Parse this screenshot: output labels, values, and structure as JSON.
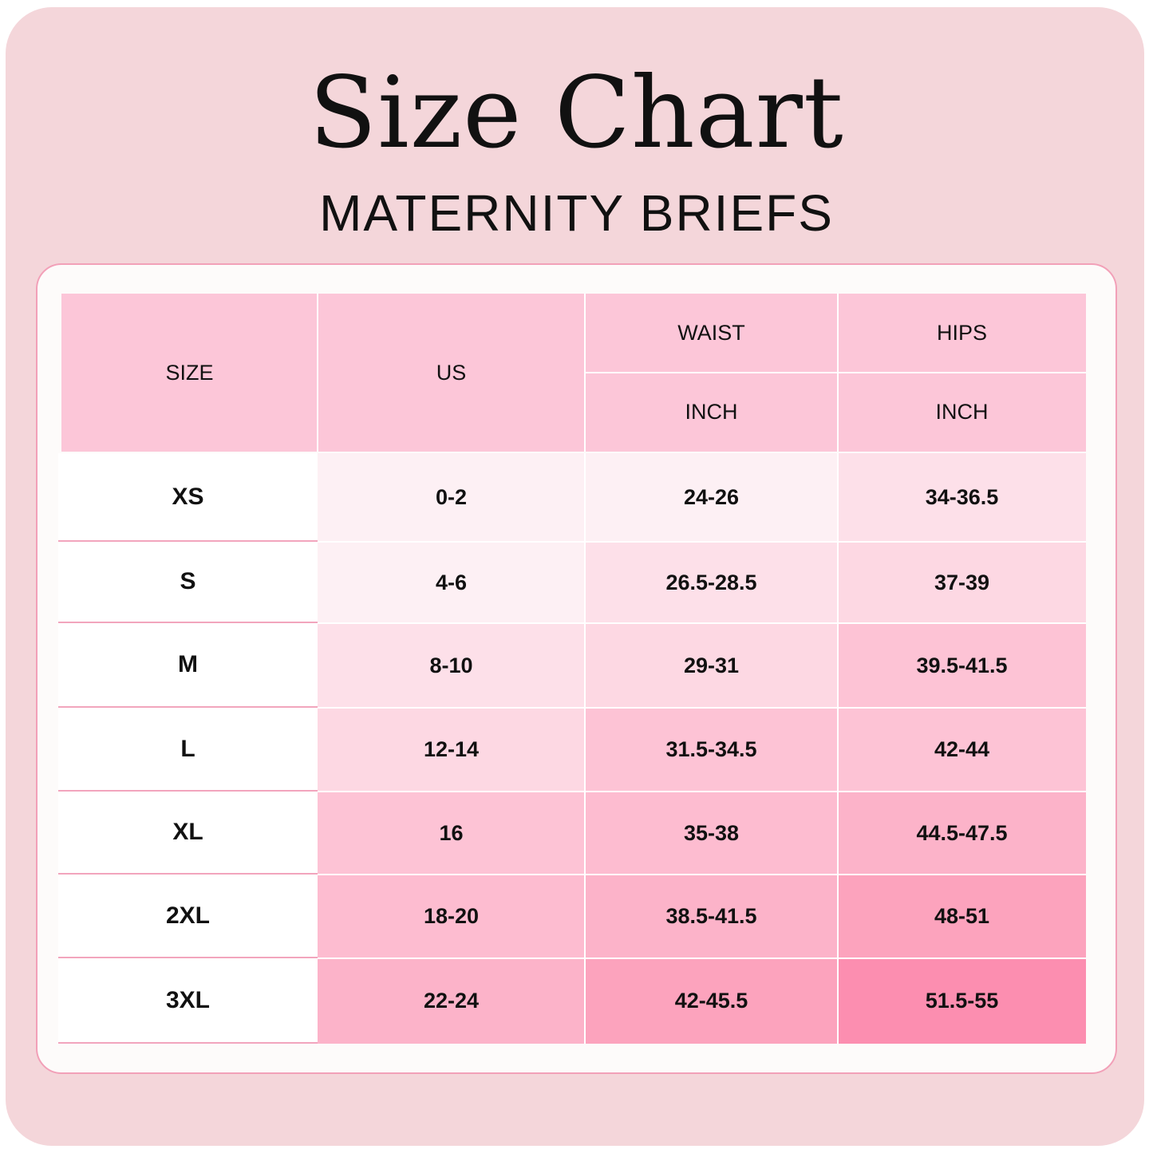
{
  "title": "Size Chart",
  "subtitle": "MATERNITY BRIEFS",
  "table": {
    "headers": {
      "size": "SIZE",
      "us": "US",
      "waist": "WAIST",
      "hips": "HIPS",
      "waist_unit": "INCH",
      "hips_unit": "INCH"
    },
    "rows": [
      {
        "size": "XS",
        "us": "0-2",
        "waist": "24-26",
        "hips": "34-36.5"
      },
      {
        "size": "S",
        "us": "4-6",
        "waist": "26.5-28.5",
        "hips": "37-39"
      },
      {
        "size": "M",
        "us": "8-10",
        "waist": "29-31",
        "hips": "39.5-41.5"
      },
      {
        "size": "L",
        "us": "12-14",
        "waist": "31.5-34.5",
        "hips": "42-44"
      },
      {
        "size": "XL",
        "us": "16",
        "waist": "35-38",
        "hips": "44.5-47.5"
      },
      {
        "size": "2XL",
        "us": "18-20",
        "waist": "38.5-41.5",
        "hips": "48-51"
      },
      {
        "size": "3XL",
        "us": "22-24",
        "waist": "42-45.5",
        "hips": "51.5-55"
      }
    ]
  },
  "colors": {
    "background": "#f4d6da",
    "panel": "#fdfbfa",
    "header": "#fcc6d8",
    "accent_border": "#f2a0b8",
    "cell_shades": [
      [
        "#fdf0f4",
        "#fdf0f4",
        "#fde0e9"
      ],
      [
        "#fdf0f4",
        "#fde0e9",
        "#fdd8e3"
      ],
      [
        "#fde0e9",
        "#fdd8e3",
        "#fdc3d5"
      ],
      [
        "#fdd8e3",
        "#fdc3d5",
        "#fdc3d5"
      ],
      [
        "#fdc3d5",
        "#fdbcd0",
        "#fcb3c9"
      ],
      [
        "#fdbcd0",
        "#fcb3c9",
        "#fca3bd"
      ],
      [
        "#fcb3c9",
        "#fca3bd",
        "#fc8eb0"
      ]
    ]
  }
}
